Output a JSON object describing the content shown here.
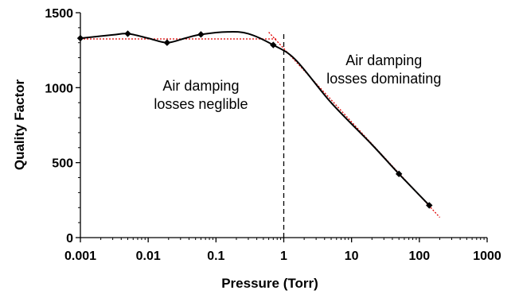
{
  "chart_data": {
    "type": "scatter",
    "xlabel": "Pressure (Torr)",
    "ylabel": "Quality Factor",
    "x_scale": "log",
    "xlim": [
      0.001,
      1000
    ],
    "ylim": [
      0,
      1500
    ],
    "x_tick_labels": [
      "0.001",
      "0.01",
      "0.1",
      "1",
      "10",
      "100",
      "1000"
    ],
    "y_tick_labels": [
      "0",
      "500",
      "1000",
      "1500"
    ],
    "grid": false,
    "series": [
      {
        "points": [
          {
            "x": 0.001,
            "y": 1330
          },
          {
            "x": 0.005,
            "y": 1360
          },
          {
            "x": 0.019,
            "y": 1300
          },
          {
            "x": 0.06,
            "y": 1355
          },
          {
            "x": 0.7,
            "y": 1285
          },
          {
            "x": 50,
            "y": 425
          },
          {
            "x": 140,
            "y": 215
          }
        ],
        "curve": [
          {
            "x": 0.001,
            "y": 1330
          },
          {
            "x": 0.003,
            "y": 1352
          },
          {
            "x": 0.005,
            "y": 1360
          },
          {
            "x": 0.01,
            "y": 1330
          },
          {
            "x": 0.019,
            "y": 1300
          },
          {
            "x": 0.035,
            "y": 1330
          },
          {
            "x": 0.06,
            "y": 1355
          },
          {
            "x": 0.15,
            "y": 1372
          },
          {
            "x": 0.3,
            "y": 1360
          },
          {
            "x": 0.7,
            "y": 1285
          },
          {
            "x": 1.5,
            "y": 1185
          },
          {
            "x": 5,
            "y": 900
          },
          {
            "x": 20,
            "y": 620
          },
          {
            "x": 50,
            "y": 425
          },
          {
            "x": 140,
            "y": 215
          }
        ]
      }
    ],
    "reference_lines": {
      "constant_fit": {
        "y": 1325,
        "x_from": 0.001,
        "x_to": 0.8
      },
      "linear_fit": {
        "from": {
          "x": 0.6,
          "y": 1370
        },
        "to": {
          "x": 200,
          "y": 135
        }
      },
      "vertical_divider": {
        "x": 1,
        "y_from": 0,
        "y_to": 1375
      }
    },
    "annotations": [
      {
        "lines": [
          "Air damping",
          "losses neglible"
        ],
        "x": 0.06,
        "y": 980
      },
      {
        "lines": [
          "Air damping",
          "losses dominating"
        ],
        "x": 30,
        "y": 1150
      }
    ]
  }
}
